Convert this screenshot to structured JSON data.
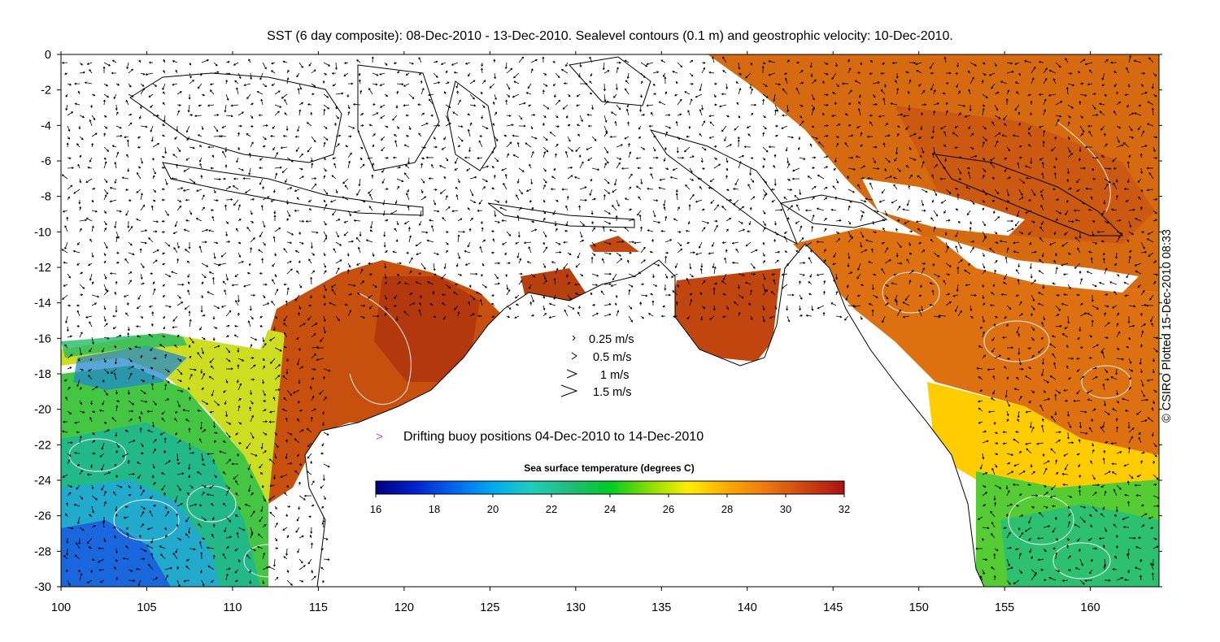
{
  "title": "SST (6 day composite): 08-Dec-2010 - 13-Dec-2010. Sealevel contours (0.1 m) and geostrophic velocity: 10-Dec-2010.",
  "credit": "© CSIRO Plotted 15-Dec-2010 08:33",
  "map": {
    "x_axis": {
      "range": [
        100,
        164
      ],
      "ticks": [
        "100",
        "105",
        "110",
        "115",
        "120",
        "125",
        "130",
        "135",
        "140",
        "145",
        "150",
        "155",
        "160"
      ]
    },
    "y_axis": {
      "range": [
        -30,
        0
      ],
      "ticks": [
        "0",
        "-2",
        "-4",
        "-6",
        "-8",
        "-10",
        "-12",
        "-14",
        "-16",
        "-18",
        "-20",
        "-22",
        "-24",
        "-26",
        "-28",
        "-30"
      ]
    }
  },
  "legend": {
    "velocity_scale": [
      {
        "label": "0.25 m/s",
        "speed": 0.25
      },
      {
        "label": "0.5 m/s",
        "speed": 0.5
      },
      {
        "label": "1 m/s",
        "speed": 1
      },
      {
        "label": "1.5 m/s",
        "speed": 1.5
      }
    ],
    "buoy_symbol": ">",
    "buoy_label": "Drifting buoy positions 04-Dec-2010 to 14-Dec-2010",
    "buoy_color": "#e040e0"
  },
  "colorbar": {
    "title": "Sea surface temperature (degrees C)",
    "min": 16,
    "max": 32,
    "ticks": [
      "16",
      "18",
      "20",
      "22",
      "24",
      "26",
      "28",
      "30",
      "32"
    ],
    "colors": [
      "#00007f",
      "#0022cc",
      "#0066ee",
      "#00aaee",
      "#22ccbb",
      "#22bb77",
      "#00cc22",
      "#88dd00",
      "#ffee00",
      "#ffaa00",
      "#ee7711",
      "#cc4411",
      "#aa1111"
    ]
  }
}
